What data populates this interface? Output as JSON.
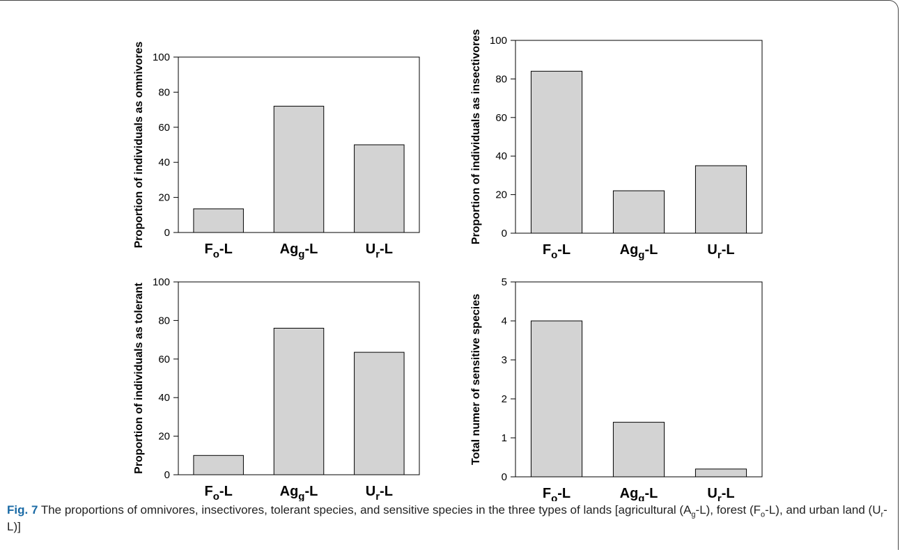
{
  "caption": {
    "label": "Fig. 7",
    "parts": [
      {
        "t": " The proportions of omnivores, insectivores, tolerant species, and sensitive species in the three types of lands [agricultural (A"
      },
      {
        "t": "g",
        "sub": true
      },
      {
        "t": "-L), forest (F"
      },
      {
        "t": "o",
        "sub": true
      },
      {
        "t": "-L), and urban land (U"
      },
      {
        "t": "r",
        "sub": true
      },
      {
        "t": "-L)]"
      }
    ]
  },
  "category_labels": [
    {
      "base": "F",
      "sub": "o",
      "suffix": "-L"
    },
    {
      "base": "Ag",
      "sub": "g",
      "suffix": "-L"
    },
    {
      "base": "U",
      "sub": "r",
      "suffix": "-L"
    }
  ],
  "colors": {
    "bar_fill": "#d3d3d3",
    "bar_stroke": "#000000",
    "axis": "#000000"
  },
  "chart_data": [
    {
      "type": "bar",
      "categories": [
        "Fo-L",
        "Agg-L",
        "Ur-L"
      ],
      "values": [
        13.5,
        72,
        50
      ],
      "ylabel": "Proportion of individuals as omnivores",
      "xlabel": "",
      "ylim": [
        0,
        100
      ],
      "yticks": [
        0,
        20,
        40,
        60,
        80,
        100
      ],
      "grid": false
    },
    {
      "type": "bar",
      "categories": [
        "Fo-L",
        "Agg-L",
        "Ur-L"
      ],
      "values": [
        84,
        22,
        35
      ],
      "ylabel": "Proportion of individuals as insectivores",
      "xlabel": "",
      "ylim": [
        0,
        100
      ],
      "yticks": [
        0,
        20,
        40,
        60,
        80,
        100
      ],
      "grid": false
    },
    {
      "type": "bar",
      "categories": [
        "Fo-L",
        "Agg-L",
        "Ur-L"
      ],
      "values": [
        10,
        76,
        63.5
      ],
      "ylabel": "Proportion of individuals as tolerant",
      "xlabel": "",
      "ylim": [
        0,
        100
      ],
      "yticks": [
        0,
        20,
        40,
        60,
        80,
        100
      ],
      "grid": false
    },
    {
      "type": "bar",
      "categories": [
        "Fo-L",
        "Agg-L",
        "Ur-L"
      ],
      "values": [
        4,
        1.4,
        0.2
      ],
      "ylabel": "Total numer of sensitive species",
      "xlabel": "",
      "ylim": [
        0,
        5
      ],
      "yticks": [
        0,
        1,
        2,
        3,
        4,
        5
      ],
      "grid": false
    }
  ]
}
